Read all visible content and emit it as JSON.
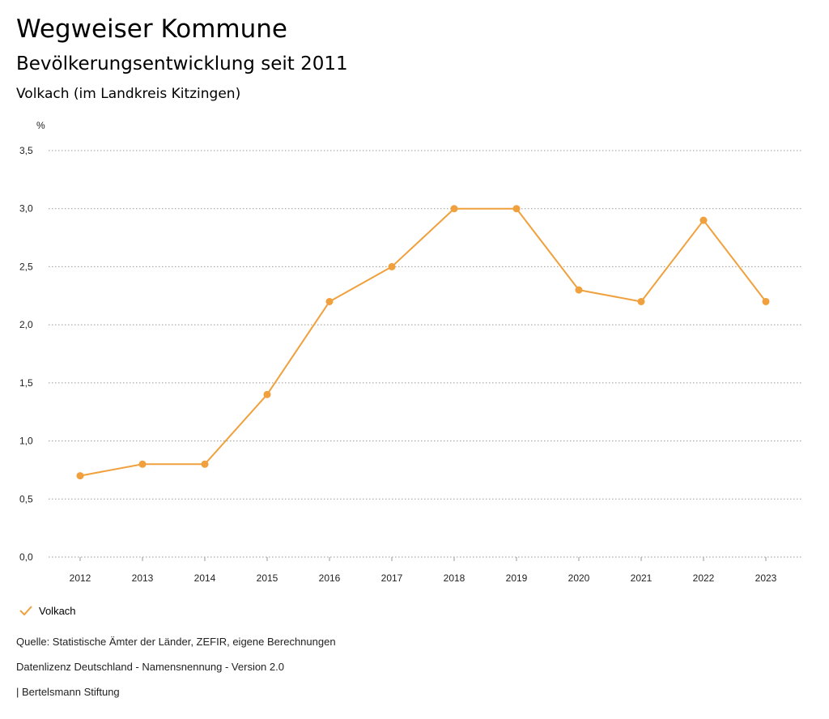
{
  "header": {
    "title": "Wegweiser Kommune",
    "subtitle": "Bevölkerungsentwicklung seit 2011",
    "region": "Volkach (im Landkreis Kitzingen)"
  },
  "chart_data": {
    "type": "line",
    "ylabel": "%",
    "x": [
      "2012",
      "2013",
      "2014",
      "2015",
      "2016",
      "2017",
      "2018",
      "2019",
      "2020",
      "2021",
      "2022",
      "2023"
    ],
    "series": [
      {
        "name": "Volkach",
        "color": "#f0a03c",
        "values": [
          0.7,
          0.8,
          0.8,
          1.4,
          2.2,
          2.5,
          3.0,
          3.0,
          2.3,
          2.2,
          2.9,
          2.2
        ]
      }
    ],
    "ylim": [
      0,
      3.5
    ],
    "yticks": [
      "0,0",
      "0,5",
      "1,0",
      "1,5",
      "2,0",
      "2,5",
      "3,0",
      "3,5"
    ],
    "grid": true
  },
  "legend": {
    "label": "Volkach",
    "icon": "check-icon"
  },
  "footer": {
    "source": "Quelle: Statistische Ämter der Länder, ZEFIR, eigene Berechnungen",
    "license": "Datenlizenz Deutschland - Namensnennung - Version 2.0",
    "publisher": "| Bertelsmann Stiftung"
  }
}
